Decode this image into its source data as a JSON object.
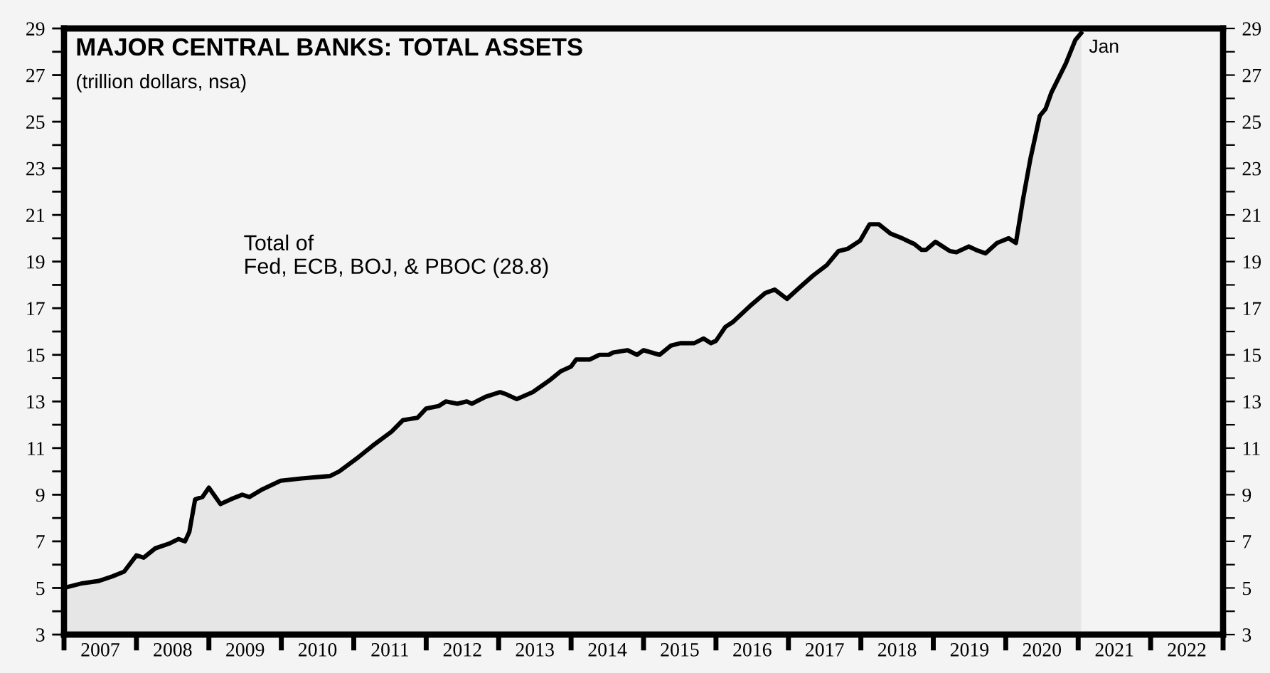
{
  "chart_data": {
    "type": "area",
    "title": "MAJOR CENTRAL BANKS: TOTAL ASSETS",
    "subtitle": "(trillion dollars, nsa)",
    "annotations": [
      "Total of\nFed, ECB, BOJ, & PBOC (28.8)",
      {
        "text": "Jan",
        "x": 2021.04,
        "y": 28.8
      }
    ],
    "series": [
      {
        "color": "#000000",
        "x": [
          2007.0,
          2007.25,
          2007.48,
          2007.67,
          2007.83,
          2008.0,
          2008.1,
          2008.26,
          2008.45,
          2008.58,
          2008.67,
          2008.73,
          2008.81,
          2008.91,
          2009.0,
          2009.16,
          2009.3,
          2009.46,
          2009.56,
          2009.72,
          2009.99,
          2010.28,
          2010.67,
          2010.8,
          2011.06,
          2011.26,
          2011.52,
          2011.68,
          2011.88,
          2012.0,
          2012.17,
          2012.27,
          2012.43,
          2012.56,
          2012.63,
          2012.82,
          2013.02,
          2013.11,
          2013.25,
          2013.47,
          2013.7,
          2013.86,
          2014.0,
          2014.07,
          2014.26,
          2014.39,
          2014.52,
          2014.58,
          2014.78,
          2014.91,
          2015.0,
          2015.22,
          2015.38,
          2015.51,
          2015.7,
          2015.83,
          2015.93,
          2016.0,
          2016.13,
          2016.23,
          2016.49,
          2016.68,
          2016.81,
          2016.98,
          2017.14,
          2017.34,
          2017.53,
          2017.69,
          2017.82,
          2017.99,
          2018.12,
          2018.25,
          2018.41,
          2018.57,
          2018.74,
          2018.84,
          2018.9,
          2019.03,
          2019.23,
          2019.32,
          2019.49,
          2019.59,
          2019.72,
          2019.88,
          2020.04,
          2020.14,
          2020.24,
          2020.34,
          2020.47,
          2020.55,
          2020.63,
          2020.83,
          2020.96,
          2021.04
        ],
        "values": [
          5.0,
          5.2,
          5.3,
          5.5,
          5.7,
          6.4,
          6.3,
          6.7,
          6.9,
          7.1,
          7.0,
          7.4,
          8.8,
          8.9,
          9.3,
          8.6,
          8.8,
          9.0,
          8.9,
          9.2,
          9.6,
          9.7,
          9.8,
          10.0,
          10.6,
          11.1,
          11.7,
          12.2,
          12.3,
          12.7,
          12.8,
          13.0,
          12.9,
          13.0,
          12.9,
          13.2,
          13.4,
          13.3,
          13.1,
          13.4,
          13.9,
          14.3,
          14.5,
          14.8,
          14.8,
          15.0,
          15.0,
          15.1,
          15.2,
          15.0,
          15.2,
          15.0,
          15.4,
          15.5,
          15.5,
          15.7,
          15.5,
          15.6,
          16.2,
          16.4,
          17.15,
          17.65,
          17.8,
          17.4,
          17.85,
          18.4,
          18.85,
          19.45,
          19.55,
          19.9,
          20.6,
          20.6,
          20.2,
          20.0,
          19.75,
          19.5,
          19.5,
          19.85,
          19.45,
          19.4,
          19.65,
          19.5,
          19.35,
          19.8,
          20.0,
          19.8,
          21.7,
          23.4,
          25.25,
          25.55,
          26.25,
          27.5,
          28.5,
          28.8
        ]
      }
    ],
    "xlim": [
      2007,
      2023
    ],
    "xticks": [
      {
        "value": 2007,
        "label": null
      },
      {
        "value": 2007.5,
        "label": "2007"
      },
      {
        "value": 2008,
        "label": null
      },
      {
        "value": 2008.5,
        "label": "2008"
      },
      {
        "value": 2009,
        "label": null
      },
      {
        "value": 2009.5,
        "label": "2009"
      },
      {
        "value": 2010,
        "label": null
      },
      {
        "value": 2010.5,
        "label": "2010"
      },
      {
        "value": 2011,
        "label": null
      },
      {
        "value": 2011.5,
        "label": "2011"
      },
      {
        "value": 2012,
        "label": null
      },
      {
        "value": 2012.5,
        "label": "2012"
      },
      {
        "value": 2013,
        "label": null
      },
      {
        "value": 2013.5,
        "label": "2013"
      },
      {
        "value": 2014,
        "label": null
      },
      {
        "value": 2014.5,
        "label": "2014"
      },
      {
        "value": 2015,
        "label": null
      },
      {
        "value": 2015.5,
        "label": "2015"
      },
      {
        "value": 2016,
        "label": null
      },
      {
        "value": 2016.5,
        "label": "2016"
      },
      {
        "value": 2017,
        "label": null
      },
      {
        "value": 2017.5,
        "label": "2017"
      },
      {
        "value": 2018,
        "label": null
      },
      {
        "value": 2018.5,
        "label": "2018"
      },
      {
        "value": 2019,
        "label": null
      },
      {
        "value": 2019.5,
        "label": "2019"
      },
      {
        "value": 2020,
        "label": null
      },
      {
        "value": 2020.5,
        "label": "2020"
      },
      {
        "value": 2021,
        "label": null
      },
      {
        "value": 2021.5,
        "label": "2021"
      },
      {
        "value": 2022,
        "label": null
      },
      {
        "value": 2022.5,
        "label": "2022"
      },
      {
        "value": 2023,
        "label": null
      }
    ],
    "ylim": [
      3,
      29
    ],
    "yticks": [
      3,
      {
        "value": 4,
        "label": null
      },
      5,
      {
        "value": 6,
        "label": null
      },
      7,
      {
        "value": 8,
        "label": null
      },
      9,
      {
        "value": 10,
        "label": null
      },
      11,
      {
        "value": 12,
        "label": null
      },
      13,
      {
        "value": 14,
        "label": null
      },
      15,
      {
        "value": 16,
        "label": null
      },
      17,
      {
        "value": 18,
        "label": null
      },
      19,
      {
        "value": 20,
        "label": null
      },
      21,
      {
        "value": 22,
        "label": null
      },
      23,
      {
        "value": 24,
        "label": null
      },
      25,
      {
        "value": 26,
        "label": null
      },
      27,
      {
        "value": 28,
        "label": null
      },
      29
    ],
    "y2lim": [
      3,
      29
    ],
    "y2ticks": [
      3,
      {
        "value": 4,
        "label": null
      },
      5,
      {
        "value": 6,
        "label": null
      },
      7,
      {
        "value": 8,
        "label": null
      },
      9,
      {
        "value": 10,
        "label": null
      },
      11,
      {
        "value": 12,
        "label": null
      },
      13,
      {
        "value": 14,
        "label": null
      },
      15,
      {
        "value": 16,
        "label": null
      },
      17,
      {
        "value": 18,
        "label": null
      },
      19,
      {
        "value": 20,
        "label": null
      },
      21,
      {
        "value": 22,
        "label": null
      },
      23,
      {
        "value": 24,
        "label": null
      },
      25,
      {
        "value": 26,
        "label": null
      },
      27,
      {
        "value": 28,
        "label": null
      },
      29
    ],
    "grid": false
  }
}
